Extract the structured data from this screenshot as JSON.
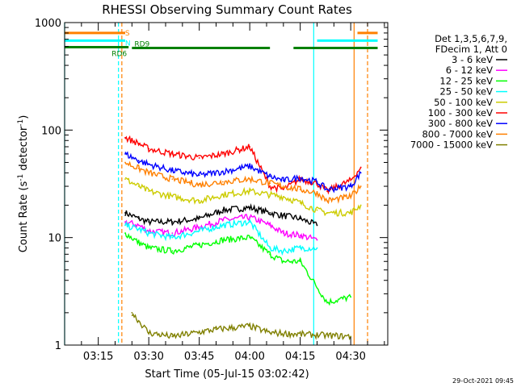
{
  "chart_data": {
    "type": "line",
    "title": "RHESSI Observing Summary Count Rates",
    "xlabel": "Start Time (05-Jul-15 03:02:42)",
    "ylabel_parts": [
      "Count Rate (s",
      "-1",
      " detector",
      "-1",
      ")"
    ],
    "y_scale": "log",
    "ylim": [
      1,
      1000
    ],
    "xlim": [
      "03:05",
      "04:41"
    ],
    "x_ticks": [
      "03:15",
      "03:30",
      "03:45",
      "04:00",
      "04:15",
      "04:30"
    ],
    "y_ticks": [
      "1",
      "10",
      "100",
      "1000"
    ],
    "legend_header": [
      "Det 1,3,5,6,7,9,",
      "FDecim 1, Att 0"
    ],
    "series": [
      {
        "name": "3 - 6 keV",
        "color": "#000000",
        "points": [
          [
            "03:23",
            17
          ],
          [
            "03:27",
            15
          ],
          [
            "03:30",
            14
          ],
          [
            "03:37",
            14
          ],
          [
            "03:45",
            15
          ],
          [
            "03:52",
            18
          ],
          [
            "04:00",
            19
          ],
          [
            "04:06",
            17
          ],
          [
            "04:10",
            16
          ],
          [
            "04:15",
            15
          ],
          [
            "04:20",
            13
          ]
        ]
      },
      {
        "name": "6 - 12 keV",
        "color": "#ff00ff",
        "points": [
          [
            "03:23",
            14
          ],
          [
            "03:27",
            13
          ],
          [
            "03:30",
            11.5
          ],
          [
            "03:37",
            11
          ],
          [
            "03:45",
            12.5
          ],
          [
            "03:52",
            14.5
          ],
          [
            "04:00",
            15.5
          ],
          [
            "04:06",
            13
          ],
          [
            "04:10",
            11
          ],
          [
            "04:15",
            10.5
          ],
          [
            "04:20",
            9.5
          ]
        ]
      },
      {
        "name": "12 - 25 keV",
        "color": "#00ff00",
        "points": [
          [
            "03:23",
            11
          ],
          [
            "03:27",
            9
          ],
          [
            "03:30",
            8
          ],
          [
            "03:37",
            7.5
          ],
          [
            "03:45",
            8.5
          ],
          [
            "03:52",
            9.5
          ],
          [
            "04:00",
            10
          ],
          [
            "04:06",
            7
          ],
          [
            "04:10",
            6
          ],
          [
            "04:15",
            6
          ],
          [
            "04:23",
            2.5
          ],
          [
            "04:30",
            2.8
          ]
        ]
      },
      {
        "name": "25 - 50 keV",
        "color": "#00ffff",
        "points": [
          [
            "03:23",
            13
          ],
          [
            "03:27",
            12
          ],
          [
            "03:30",
            11
          ],
          [
            "03:37",
            10
          ],
          [
            "03:45",
            11.5
          ],
          [
            "03:52",
            13
          ],
          [
            "04:00",
            14
          ],
          [
            "04:06",
            8
          ],
          [
            "04:10",
            7.5
          ],
          [
            "04:15",
            8
          ],
          [
            "04:20",
            8
          ]
        ]
      },
      {
        "name": "50 - 100 keV",
        "color": "#cccc00",
        "points": [
          [
            "03:23",
            35
          ],
          [
            "03:27",
            30
          ],
          [
            "03:30",
            27
          ],
          [
            "03:37",
            24
          ],
          [
            "03:45",
            22
          ],
          [
            "03:52",
            25
          ],
          [
            "04:00",
            27
          ],
          [
            "04:06",
            25
          ],
          [
            "04:10",
            24
          ],
          [
            "04:15",
            21
          ],
          [
            "04:20",
            18
          ],
          [
            "04:23",
            17
          ],
          [
            "04:30",
            17
          ],
          [
            "04:33",
            20
          ]
        ]
      },
      {
        "name": "100 - 300 keV",
        "color": "#ff0000",
        "points": [
          [
            "03:23",
            85
          ],
          [
            "03:27",
            75
          ],
          [
            "03:30",
            67
          ],
          [
            "03:37",
            60
          ],
          [
            "03:45",
            55
          ],
          [
            "03:52",
            60
          ],
          [
            "04:00",
            70
          ],
          [
            "04:06",
            30
          ],
          [
            "04:10",
            28
          ],
          [
            "04:15",
            35
          ],
          [
            "04:20",
            32
          ],
          [
            "04:23",
            27
          ],
          [
            "04:30",
            34
          ],
          [
            "04:33",
            45
          ]
        ]
      },
      {
        "name": "300 - 800 keV",
        "color": "#0000ff",
        "points": [
          [
            "03:23",
            60
          ],
          [
            "03:27",
            52
          ],
          [
            "03:30",
            48
          ],
          [
            "03:37",
            42
          ],
          [
            "03:45",
            38
          ],
          [
            "03:52",
            41
          ],
          [
            "04:00",
            46
          ],
          [
            "04:06",
            37
          ],
          [
            "04:10",
            34
          ],
          [
            "04:15",
            36
          ],
          [
            "04:20",
            33
          ],
          [
            "04:23",
            28
          ],
          [
            "04:30",
            30
          ],
          [
            "04:33",
            40
          ]
        ]
      },
      {
        "name": "800 - 7000 keV",
        "color": "#ff8000",
        "points": [
          [
            "03:23",
            50
          ],
          [
            "03:27",
            44
          ],
          [
            "03:30",
            40
          ],
          [
            "03:37",
            35
          ],
          [
            "03:45",
            31
          ],
          [
            "03:52",
            33
          ],
          [
            "04:00",
            35
          ],
          [
            "04:06",
            32
          ],
          [
            "04:10",
            30
          ],
          [
            "04:15",
            28
          ],
          [
            "04:20",
            26
          ],
          [
            "04:23",
            22
          ],
          [
            "04:30",
            24
          ],
          [
            "04:33",
            30
          ]
        ]
      },
      {
        "name": "7000 - 15000 keV",
        "color": "#808000",
        "points": [
          [
            "03:25",
            2
          ],
          [
            "03:30",
            1.3
          ],
          [
            "03:37",
            1.2
          ],
          [
            "03:50",
            1.4
          ],
          [
            "04:00",
            1.5
          ],
          [
            "04:06",
            1.3
          ],
          [
            "04:30",
            1.2
          ]
        ]
      }
    ],
    "state_bars": [
      {
        "label": "S",
        "color": "#ff8000",
        "level": 800,
        "spans": [
          [
            "03:05",
            "03:23"
          ],
          [
            "04:32",
            "04:38"
          ]
        ]
      },
      {
        "label": "N",
        "color": "#00ffff",
        "level": 680,
        "spans": [
          [
            "03:05",
            "03:23"
          ],
          [
            "04:20",
            "04:38"
          ]
        ]
      },
      {
        "label": "RD6",
        "color": "#008000",
        "level": 590,
        "spans": [
          [
            "03:05",
            "03:24"
          ]
        ]
      },
      {
        "label": "RD9",
        "color": "#008000",
        "level": 580,
        "spans": [
          [
            "03:25",
            "04:06"
          ],
          [
            "04:13",
            "04:38"
          ]
        ]
      }
    ],
    "vlines": [
      {
        "time": "03:05",
        "color": "#00ffff",
        "style": "solid"
      },
      {
        "time": "03:21",
        "color": "#00ffff",
        "style": "dashed"
      },
      {
        "time": "03:22",
        "color": "#ff8000",
        "style": "dashed"
      },
      {
        "time": "04:19",
        "color": "#00ffff",
        "style": "solid"
      },
      {
        "time": "04:31",
        "color": "#ff8000",
        "style": "solid"
      },
      {
        "time": "04:35",
        "color": "#ff8000",
        "style": "dashed"
      }
    ],
    "timestamp": "29-Oct-2021 09:45"
  }
}
